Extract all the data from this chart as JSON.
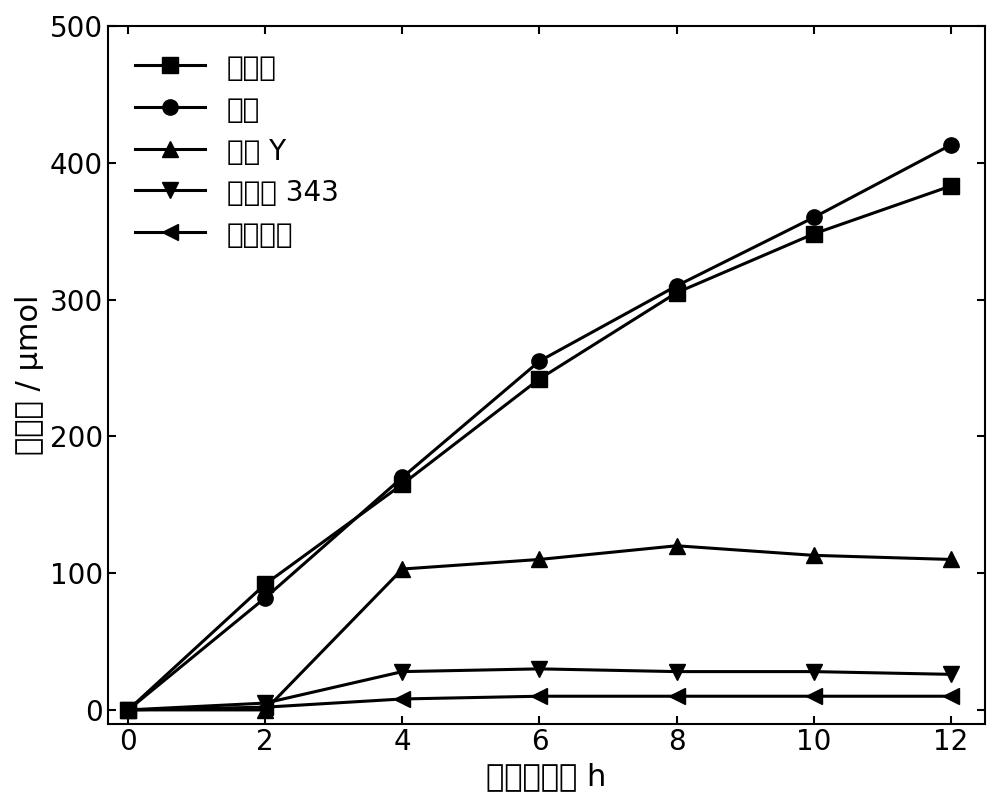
{
  "x": [
    0,
    2,
    4,
    6,
    8,
    10,
    12
  ],
  "series": {
    "茵素红": [
      0,
      92,
      165,
      242,
      305,
      348,
      383
    ],
    "茵素": [
      0,
      82,
      170,
      255,
      310,
      360,
      413
    ],
    "曙红 Y": [
      0,
      0,
      103,
      110,
      120,
      113,
      110
    ],
    "香豆素 343": [
      0,
      5,
      28,
      30,
      28,
      28,
      26
    ],
    "无敏化剂": [
      0,
      2,
      8,
      10,
      10,
      10,
      10
    ]
  },
  "markers": {
    "茵素红": "s",
    "茵素": "o",
    "曙红 Y": "^",
    "香豆素 343": "v",
    "无敏化剂": "<"
  },
  "line_color": "#000000",
  "marker_size": 11,
  "line_width": 2.2,
  "xlabel": "光照时间／ h",
  "ylabel": "产氢量 / μmol",
  "xlim": [
    -0.3,
    12.5
  ],
  "ylim": [
    -10,
    500
  ],
  "yticks": [
    0,
    100,
    200,
    300,
    400,
    500
  ],
  "xticks": [
    0,
    2,
    4,
    6,
    8,
    10,
    12
  ],
  "legend_fontsize": 20,
  "axis_fontsize": 22,
  "tick_fontsize": 20,
  "figsize": [
    10.0,
    8.06
  ],
  "dpi": 100
}
